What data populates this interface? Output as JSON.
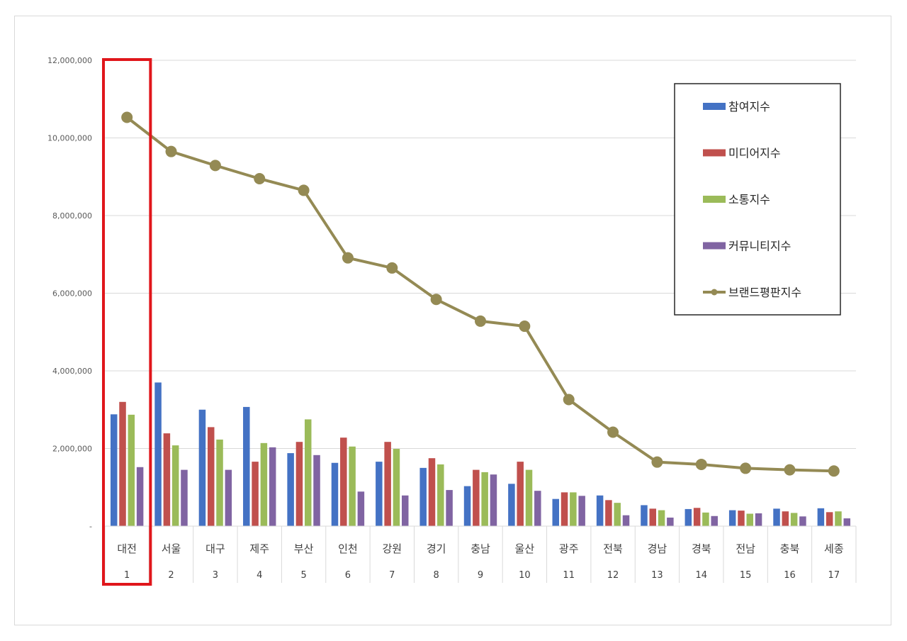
{
  "chart_data": {
    "type": "bar",
    "categories": [
      "대전",
      "서울",
      "대구",
      "제주",
      "부산",
      "인천",
      "강원",
      "경기",
      "충남",
      "울산",
      "광주",
      "전북",
      "경남",
      "경북",
      "전남",
      "충북",
      "세종"
    ],
    "ranks": [
      "1",
      "2",
      "3",
      "4",
      "5",
      "6",
      "7",
      "8",
      "9",
      "10",
      "11",
      "12",
      "13",
      "14",
      "15",
      "16",
      "17"
    ],
    "ylim": [
      0,
      12000000
    ],
    "yticks": [
      {
        "value": 0,
        "label": "-"
      },
      {
        "value": 2000000,
        "label": "2,000,000"
      },
      {
        "value": 4000000,
        "label": "4,000,000"
      },
      {
        "value": 6000000,
        "label": "6,000,000"
      },
      {
        "value": 8000000,
        "label": "8,000,000"
      },
      {
        "value": 10000000,
        "label": "10,000,000"
      },
      {
        "value": 12000000,
        "label": "12,000,000"
      }
    ],
    "grid": true,
    "legend_position": "top-right",
    "highlight_category": "대전",
    "series": [
      {
        "name": "참여지수",
        "kind": "bar",
        "color": "#4472C4",
        "values": [
          2880000,
          3700000,
          3000000,
          3070000,
          1880000,
          1630000,
          1660000,
          1500000,
          1030000,
          1090000,
          700000,
          790000,
          540000,
          440000,
          410000,
          450000,
          460000
        ]
      },
      {
        "name": "미디어지수",
        "kind": "bar",
        "color": "#C0504D",
        "values": [
          3200000,
          2390000,
          2550000,
          1660000,
          2170000,
          2280000,
          2170000,
          1750000,
          1450000,
          1660000,
          870000,
          670000,
          450000,
          470000,
          400000,
          380000,
          360000
        ]
      },
      {
        "name": "소통지수",
        "kind": "bar",
        "color": "#9BBB59",
        "values": [
          2870000,
          2080000,
          2230000,
          2140000,
          2750000,
          2050000,
          1990000,
          1590000,
          1390000,
          1450000,
          870000,
          600000,
          410000,
          350000,
          320000,
          340000,
          380000
        ]
      },
      {
        "name": "커뮤니티지수",
        "kind": "bar",
        "color": "#8064A2",
        "values": [
          1520000,
          1450000,
          1450000,
          2030000,
          1830000,
          890000,
          790000,
          930000,
          1330000,
          910000,
          780000,
          280000,
          220000,
          260000,
          330000,
          250000,
          200000
        ]
      },
      {
        "name": "브랜드평판지수",
        "kind": "line",
        "color": "#948A54",
        "values": [
          10530000,
          9650000,
          9290000,
          8950000,
          8650000,
          6910000,
          6650000,
          5840000,
          5280000,
          5150000,
          3260000,
          2420000,
          1650000,
          1590000,
          1490000,
          1450000,
          1420000
        ]
      }
    ]
  }
}
